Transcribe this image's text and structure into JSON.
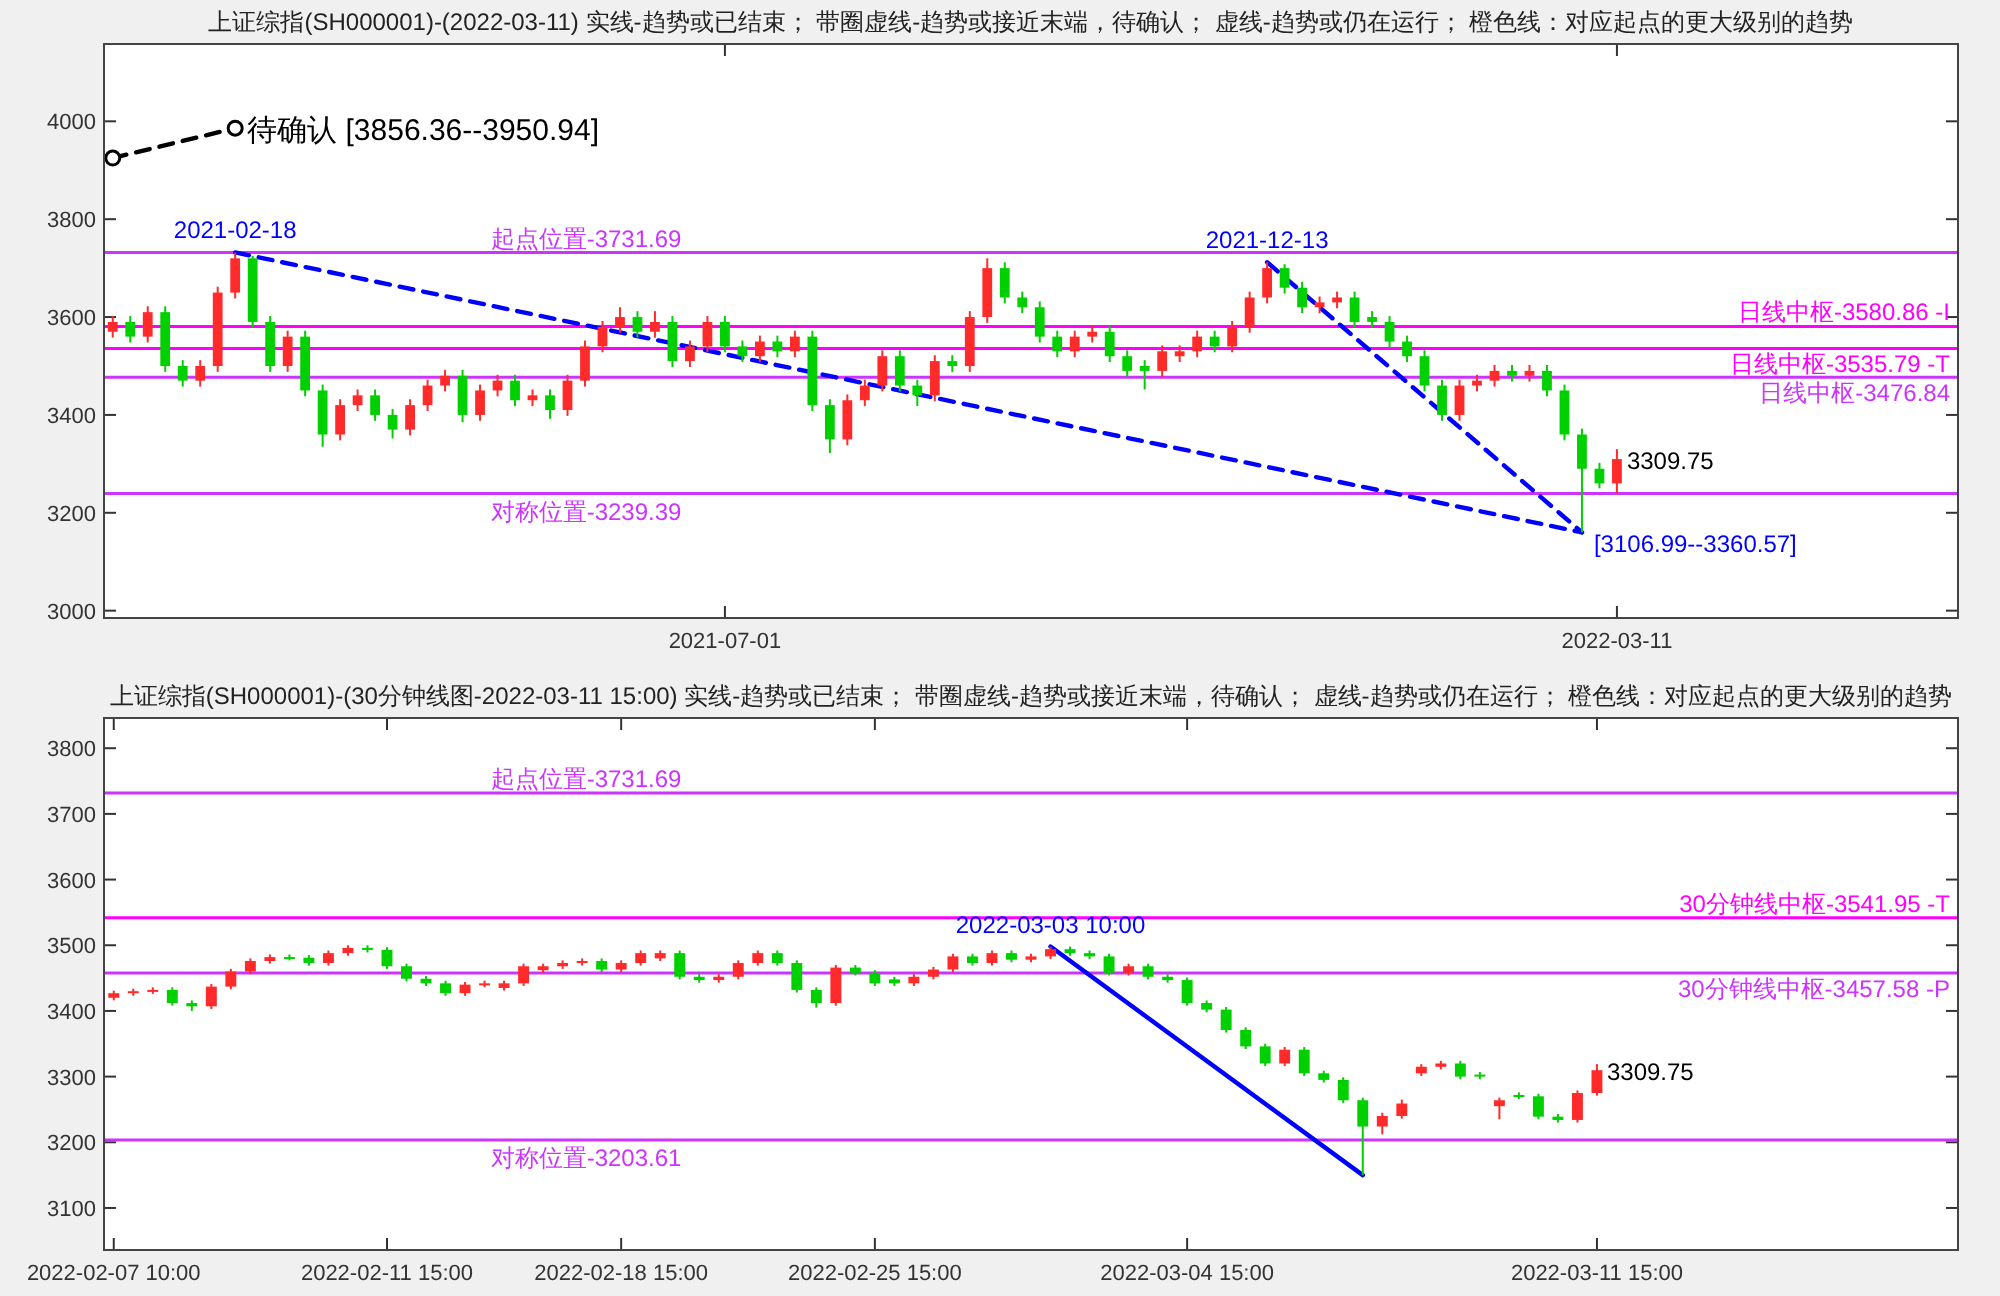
{
  "chart_data": [
    {
      "type": "candlestick",
      "title": "上证综指(SH000001)-(2022-03-11) 实线-趋势或已结束； 带圈虚线-趋势或接近末端，待确认； 虚线-趋势或仍在运行； 橙色线：对应起点的更大级别的趋势",
      "ylim": [
        2985,
        4158
      ],
      "yticks": [
        3000,
        3200,
        3400,
        3600,
        3800,
        4000
      ],
      "categories": [
        null,
        null,
        null,
        null,
        null,
        null,
        null,
        null,
        null,
        null,
        null,
        null,
        null,
        null,
        null,
        null,
        null,
        null,
        null,
        null,
        null,
        null,
        null,
        null,
        null,
        null,
        null,
        null,
        null,
        null,
        null,
        null,
        null,
        null,
        null,
        "2021-07-01",
        null,
        null,
        null,
        null,
        null,
        null,
        null,
        null,
        null,
        null,
        null,
        null,
        null,
        null,
        null,
        null,
        null,
        null,
        null,
        null,
        null,
        null,
        null,
        null,
        null,
        null,
        null,
        null,
        null,
        null,
        null,
        null,
        null,
        null,
        null,
        null,
        null,
        null,
        null,
        null,
        null,
        null,
        null,
        null,
        null,
        null,
        null,
        null,
        null,
        null,
        "2022-03-11",
        null,
        null,
        null,
        null,
        null,
        null,
        null,
        null,
        null,
        null,
        null,
        null,
        null,
        null,
        null,
        null,
        null,
        null,
        null
      ],
      "ohlc": [
        [
          3570,
          3602,
          3558,
          3590
        ],
        [
          3590,
          3602,
          3548,
          3560
        ],
        [
          3560,
          3622,
          3548,
          3610
        ],
        [
          3610,
          3622,
          3488,
          3500
        ],
        [
          3500,
          3512,
          3458,
          3470
        ],
        [
          3470,
          3512,
          3458,
          3500
        ],
        [
          3500,
          3662,
          3488,
          3650
        ],
        [
          3650,
          3732,
          3638,
          3720
        ],
        [
          3720,
          3725,
          3578,
          3590
        ],
        [
          3590,
          3602,
          3488,
          3500
        ],
        [
          3500,
          3572,
          3488,
          3560
        ],
        [
          3560,
          3572,
          3438,
          3450
        ],
        [
          3450,
          3462,
          3335,
          3360
        ],
        [
          3360,
          3432,
          3348,
          3420
        ],
        [
          3420,
          3452,
          3408,
          3440
        ],
        [
          3440,
          3452,
          3388,
          3400
        ],
        [
          3400,
          3412,
          3352,
          3370
        ],
        [
          3370,
          3432,
          3358,
          3420
        ],
        [
          3420,
          3472,
          3408,
          3460
        ],
        [
          3460,
          3492,
          3448,
          3480
        ],
        [
          3480,
          3492,
          3385,
          3400
        ],
        [
          3400,
          3462,
          3388,
          3450
        ],
        [
          3450,
          3482,
          3438,
          3470
        ],
        [
          3470,
          3482,
          3418,
          3430
        ],
        [
          3430,
          3452,
          3418,
          3440
        ],
        [
          3440,
          3452,
          3392,
          3410
        ],
        [
          3410,
          3482,
          3398,
          3470
        ],
        [
          3470,
          3552,
          3458,
          3540
        ],
        [
          3540,
          3592,
          3528,
          3580
        ],
        [
          3580,
          3620,
          3568,
          3600
        ],
        [
          3600,
          3612,
          3558,
          3570
        ],
        [
          3570,
          3612,
          3558,
          3590
        ],
        [
          3590,
          3602,
          3498,
          3510
        ],
        [
          3510,
          3552,
          3498,
          3540
        ],
        [
          3540,
          3602,
          3528,
          3590
        ],
        [
          3590,
          3602,
          3528,
          3540
        ],
        [
          3540,
          3552,
          3508,
          3520
        ],
        [
          3520,
          3562,
          3508,
          3550
        ],
        [
          3550,
          3562,
          3518,
          3530
        ],
        [
          3530,
          3572,
          3518,
          3560
        ],
        [
          3560,
          3572,
          3408,
          3420
        ],
        [
          3420,
          3432,
          3322,
          3350
        ],
        [
          3350,
          3442,
          3338,
          3430
        ],
        [
          3430,
          3472,
          3418,
          3460
        ],
        [
          3460,
          3532,
          3448,
          3520
        ],
        [
          3520,
          3532,
          3448,
          3460
        ],
        [
          3460,
          3472,
          3418,
          3440
        ],
        [
          3440,
          3522,
          3428,
          3510
        ],
        [
          3510,
          3522,
          3488,
          3500
        ],
        [
          3500,
          3612,
          3488,
          3600
        ],
        [
          3600,
          3720,
          3588,
          3700
        ],
        [
          3700,
          3712,
          3628,
          3640
        ],
        [
          3640,
          3652,
          3608,
          3620
        ],
        [
          3620,
          3632,
          3548,
          3560
        ],
        [
          3560,
          3572,
          3518,
          3530
        ],
        [
          3530,
          3572,
          3518,
          3560
        ],
        [
          3560,
          3582,
          3548,
          3570
        ],
        [
          3570,
          3582,
          3508,
          3520
        ],
        [
          3520,
          3532,
          3478,
          3490
        ],
        [
          3500,
          3512,
          3452,
          3490
        ],
        [
          3490,
          3542,
          3478,
          3530
        ],
        [
          3520,
          3542,
          3508,
          3530
        ],
        [
          3530,
          3572,
          3518,
          3560
        ],
        [
          3560,
          3572,
          3528,
          3540
        ],
        [
          3540,
          3592,
          3528,
          3580
        ],
        [
          3580,
          3652,
          3568,
          3640
        ],
        [
          3640,
          3712,
          3628,
          3700
        ],
        [
          3700,
          3708,
          3648,
          3660
        ],
        [
          3660,
          3672,
          3608,
          3620
        ],
        [
          3620,
          3642,
          3608,
          3630
        ],
        [
          3630,
          3652,
          3618,
          3640
        ],
        [
          3640,
          3652,
          3578,
          3590
        ],
        [
          3600,
          3612,
          3578,
          3590
        ],
        [
          3590,
          3602,
          3538,
          3550
        ],
        [
          3550,
          3562,
          3508,
          3520
        ],
        [
          3520,
          3532,
          3448,
          3460
        ],
        [
          3460,
          3472,
          3388,
          3400
        ],
        [
          3400,
          3472,
          3388,
          3460
        ],
        [
          3460,
          3482,
          3448,
          3470
        ],
        [
          3470,
          3502,
          3458,
          3490
        ],
        [
          3490,
          3502,
          3468,
          3480
        ],
        [
          3480,
          3502,
          3468,
          3490
        ],
        [
          3490,
          3502,
          3438,
          3450
        ],
        [
          3450,
          3462,
          3348,
          3360
        ],
        [
          3360,
          3372,
          3160,
          3290
        ],
        [
          3290,
          3302,
          3250,
          3260
        ],
        [
          3260,
          3330,
          3240,
          3309.75
        ],
        null,
        null,
        null,
        null,
        null,
        null,
        null,
        null,
        null,
        null,
        null,
        null,
        null,
        null,
        null,
        null,
        null,
        null,
        null
      ],
      "series": [
        {
          "type": "line",
          "color": "#000000",
          "line_style": "dashed",
          "marker": "circle",
          "values": [
            3925,
            null,
            null,
            null,
            null,
            null,
            null,
            3986,
            null,
            null,
            null,
            null,
            null,
            null,
            null,
            null,
            null,
            null,
            null,
            null,
            null,
            null,
            null,
            null,
            null,
            null,
            null,
            null,
            null,
            null,
            null,
            null,
            null,
            null,
            null,
            null,
            null,
            null,
            null,
            null,
            null,
            null,
            null,
            null,
            null,
            null,
            null,
            null,
            null,
            null,
            null,
            null,
            null,
            null,
            null,
            null,
            null,
            null,
            null,
            null,
            null,
            null,
            null,
            null,
            null,
            null,
            null,
            null,
            null,
            null,
            null,
            null,
            null,
            null,
            null,
            null,
            null,
            null,
            null,
            null,
            null,
            null,
            null,
            null,
            null,
            null,
            null,
            null,
            null,
            null,
            null,
            null,
            null,
            null,
            null,
            null,
            null,
            null,
            null,
            null,
            null,
            null,
            null,
            null,
            null,
            null
          ]
        },
        {
          "type": "line",
          "color": "#0000ff",
          "line_style": "dashed",
          "values": [
            null,
            null,
            null,
            null,
            null,
            null,
            null,
            3732,
            null,
            null,
            null,
            null,
            null,
            null,
            null,
            null,
            null,
            null,
            null,
            null,
            null,
            null,
            null,
            null,
            null,
            null,
            null,
            null,
            null,
            null,
            null,
            null,
            null,
            null,
            null,
            null,
            null,
            null,
            null,
            null,
            null,
            null,
            null,
            null,
            null,
            null,
            null,
            null,
            null,
            null,
            null,
            null,
            null,
            null,
            null,
            null,
            null,
            null,
            null,
            null,
            null,
            null,
            null,
            null,
            null,
            null,
            null,
            null,
            null,
            null,
            null,
            null,
            null,
            null,
            null,
            null,
            null,
            null,
            null,
            null,
            null,
            null,
            null,
            null,
            3160,
            null,
            null,
            null,
            null,
            null,
            null,
            null,
            null,
            null,
            null,
            null,
            null,
            null,
            null,
            null,
            null,
            null,
            null,
            null,
            null,
            null
          ]
        },
        {
          "type": "line",
          "color": "#0000ff",
          "line_style": "dashed",
          "values": [
            null,
            null,
            null,
            null,
            null,
            null,
            null,
            null,
            null,
            null,
            null,
            null,
            null,
            null,
            null,
            null,
            null,
            null,
            null,
            null,
            null,
            null,
            null,
            null,
            null,
            null,
            null,
            null,
            null,
            null,
            null,
            null,
            null,
            null,
            null,
            null,
            null,
            null,
            null,
            null,
            null,
            null,
            null,
            null,
            null,
            null,
            null,
            null,
            null,
            null,
            null,
            null,
            null,
            null,
            null,
            null,
            null,
            null,
            null,
            null,
            null,
            null,
            null,
            null,
            null,
            null,
            3712,
            null,
            null,
            null,
            null,
            null,
            null,
            null,
            null,
            null,
            null,
            null,
            null,
            null,
            null,
            null,
            null,
            null,
            3160,
            null,
            null,
            null,
            null,
            null,
            null,
            null,
            null,
            null,
            null,
            null,
            null,
            null,
            null,
            null,
            null,
            null,
            null,
            null,
            null,
            null
          ]
        }
      ],
      "ref_lines": [
        {
          "axis": "y",
          "value": 3731.69,
          "label": "起点位置-3731.69",
          "color": "#cc33ff"
        },
        {
          "axis": "y",
          "value": 3580.86,
          "label": "日线中枢-3580.86 -I",
          "color": "#ff00ff"
        },
        {
          "axis": "y",
          "value": 3535.79,
          "label": "日线中枢-3535.79 -T",
          "color": "#ff00ff"
        },
        {
          "axis": "y",
          "value": 3476.84,
          "label": "日线中枢-3476.84",
          "color": "#cc33ff"
        },
        {
          "axis": "y",
          "value": 3239.39,
          "label": "对称位置-3239.39",
          "color": "#cc33ff"
        }
      ],
      "annotations": [
        {
          "text": "2021-02-18",
          "y": 3732
        },
        {
          "text": "2021-12-13",
          "y": 3712
        },
        "待确认 [3856.36--3950.94]",
        "[3106.99--3360.57]",
        {
          "text": "3309.75",
          "x": "2022-03-11",
          "y": 3309.75
        }
      ]
    },
    {
      "type": "candlestick",
      "title": "上证综指(SH000001)-(30分钟线图-2022-03-11 15:00) 实线-趋势或已结束； 带圈虚线-趋势或接近末端，待确认； 虚线-趋势或仍在运行； 橙色线：对应起点的更大级别的趋势",
      "ylim": [
        3036,
        3846
      ],
      "yticks": [
        3100,
        3200,
        3300,
        3400,
        3500,
        3600,
        3700,
        3800
      ],
      "categories": [
        "2022-02-07 10:00",
        null,
        null,
        null,
        null,
        null,
        null,
        null,
        null,
        null,
        null,
        null,
        null,
        null,
        "2022-02-11 15:00",
        null,
        null,
        null,
        null,
        null,
        null,
        null,
        null,
        null,
        null,
        null,
        "2022-02-18 15:00",
        null,
        null,
        null,
        null,
        null,
        null,
        null,
        null,
        null,
        null,
        null,
        null,
        "2022-02-25 15:00",
        null,
        null,
        null,
        null,
        null,
        null,
        null,
        null,
        null,
        null,
        null,
        null,
        null,
        null,
        null,
        "2022-03-04 15:00",
        null,
        null,
        null,
        null,
        null,
        null,
        null,
        null,
        null,
        null,
        null,
        null,
        null,
        null,
        null,
        null,
        null,
        null,
        null,
        null,
        "2022-03-11 15:00",
        null,
        null,
        null,
        null,
        null,
        null,
        null,
        null,
        null,
        null,
        null,
        null,
        null,
        null,
        null,
        null,
        null,
        null
      ],
      "ohlc": [
        [
          3420,
          3431,
          3416,
          3427
        ],
        [
          3427,
          3434,
          3423,
          3430
        ],
        [
          3430,
          3436,
          3426,
          3432
        ],
        [
          3432,
          3436,
          3408,
          3412
        ],
        [
          3412,
          3416,
          3400,
          3407
        ],
        [
          3407,
          3441,
          3403,
          3437
        ],
        [
          3437,
          3464,
          3433,
          3460
        ],
        [
          3460,
          3480,
          3456,
          3476
        ],
        [
          3476,
          3486,
          3472,
          3482
        ],
        [
          3482,
          3486,
          3477,
          3481
        ],
        [
          3481,
          3485,
          3469,
          3473
        ],
        [
          3473,
          3492,
          3469,
          3488
        ],
        [
          3488,
          3500,
          3484,
          3496
        ],
        [
          3496,
          3500,
          3489,
          3493
        ],
        [
          3493,
          3497,
          3464,
          3468
        ],
        [
          3468,
          3472,
          3445,
          3449
        ],
        [
          3449,
          3453,
          3438,
          3442
        ],
        [
          3442,
          3446,
          3423,
          3427
        ],
        [
          3427,
          3444,
          3423,
          3440
        ],
        [
          3440,
          3446,
          3436,
          3442
        ],
        [
          3435,
          3446,
          3431,
          3442
        ],
        [
          3442,
          3472,
          3438,
          3468
        ],
        [
          3462,
          3472,
          3458,
          3468
        ],
        [
          3468,
          3477,
          3464,
          3473
        ],
        [
          3473,
          3480,
          3469,
          3476
        ],
        [
          3476,
          3480,
          3459,
          3463
        ],
        [
          3463,
          3477,
          3459,
          3473
        ],
        [
          3473,
          3492,
          3469,
          3488
        ],
        [
          3480,
          3492,
          3476,
          3488
        ],
        [
          3488,
          3492,
          3448,
          3452
        ],
        [
          3452,
          3456,
          3443,
          3447
        ],
        [
          3447,
          3456,
          3443,
          3452
        ],
        [
          3452,
          3477,
          3448,
          3473
        ],
        [
          3473,
          3492,
          3469,
          3488
        ],
        [
          3488,
          3492,
          3469,
          3473
        ],
        [
          3473,
          3477,
          3428,
          3432
        ],
        [
          3432,
          3436,
          3405,
          3412
        ],
        [
          3412,
          3470,
          3408,
          3466
        ],
        [
          3466,
          3470,
          3454,
          3458
        ],
        [
          3458,
          3462,
          3438,
          3442
        ],
        [
          3448,
          3452,
          3438,
          3442
        ],
        [
          3442,
          3456,
          3438,
          3452
        ],
        [
          3452,
          3467,
          3448,
          3463
        ],
        [
          3463,
          3487,
          3459,
          3483
        ],
        [
          3483,
          3487,
          3469,
          3473
        ],
        [
          3473,
          3492,
          3469,
          3488
        ],
        [
          3488,
          3492,
          3474,
          3478
        ],
        [
          3478,
          3487,
          3474,
          3483
        ],
        [
          3483,
          3498,
          3479,
          3494
        ],
        [
          3494,
          3498,
          3484,
          3488
        ],
        [
          3488,
          3492,
          3479,
          3483
        ],
        [
          3483,
          3487,
          3454,
          3458
        ],
        [
          3458,
          3472,
          3454,
          3468
        ],
        [
          3468,
          3472,
          3448,
          3452
        ],
        [
          3452,
          3456,
          3443,
          3447
        ],
        [
          3447,
          3451,
          3408,
          3412
        ],
        [
          3412,
          3416,
          3398,
          3402
        ],
        [
          3402,
          3406,
          3367,
          3371
        ],
        [
          3371,
          3375,
          3342,
          3346
        ],
        [
          3346,
          3350,
          3316,
          3320
        ],
        [
          3320,
          3345,
          3316,
          3341
        ],
        [
          3341,
          3345,
          3301,
          3305
        ],
        [
          3305,
          3309,
          3291,
          3295
        ],
        [
          3295,
          3299,
          3260,
          3264
        ],
        [
          3264,
          3268,
          3150,
          3224
        ],
        [
          3224,
          3245,
          3212,
          3240
        ],
        [
          3240,
          3265,
          3236,
          3259
        ],
        [
          3305,
          3319,
          3301,
          3315
        ],
        [
          3315,
          3324,
          3311,
          3320
        ],
        [
          3320,
          3324,
          3296,
          3300
        ],
        [
          3303,
          3307,
          3296,
          3300
        ],
        [
          3255,
          3268,
          3235,
          3264
        ],
        [
          3272,
          3276,
          3266,
          3270
        ],
        [
          3270,
          3274,
          3235,
          3239
        ],
        [
          3239,
          3243,
          3230,
          3234
        ],
        [
          3234,
          3279,
          3230,
          3275
        ],
        [
          3275,
          3319,
          3271,
          3309.75
        ],
        null,
        null,
        null,
        null,
        null,
        null,
        null,
        null,
        null,
        null,
        null,
        null,
        null,
        null,
        null,
        null,
        null,
        null
      ],
      "series": [
        {
          "type": "line",
          "color": "#0000ff",
          "line_style": "solid",
          "values": [
            null,
            null,
            null,
            null,
            null,
            null,
            null,
            null,
            null,
            null,
            null,
            null,
            null,
            null,
            null,
            null,
            null,
            null,
            null,
            null,
            null,
            null,
            null,
            null,
            null,
            null,
            null,
            null,
            null,
            null,
            null,
            null,
            null,
            null,
            null,
            null,
            null,
            null,
            null,
            null,
            null,
            null,
            null,
            null,
            null,
            null,
            null,
            null,
            3498,
            null,
            null,
            null,
            null,
            null,
            null,
            null,
            null,
            null,
            null,
            null,
            null,
            null,
            null,
            null,
            3150,
            null,
            null,
            null,
            null,
            null,
            null,
            null,
            null,
            null,
            null,
            null,
            null,
            null,
            null,
            null,
            null,
            null,
            null,
            null,
            null,
            null,
            null,
            null,
            null,
            null,
            null,
            null,
            null,
            null,
            null
          ]
        }
      ],
      "ref_lines": [
        {
          "axis": "y",
          "value": 3731.69,
          "label": "起点位置-3731.69",
          "color": "#cc33ff"
        },
        {
          "axis": "y",
          "value": 3541.95,
          "label": "30分钟线中枢-3541.95 -T",
          "color": "#ff00ff"
        },
        {
          "axis": "y",
          "value": 3457.58,
          "label": "30分钟线中枢-3457.58 -P",
          "color": "#cc33ff"
        },
        {
          "axis": "y",
          "value": 3203.61,
          "label": "对称位置-3203.61",
          "color": "#cc33ff"
        }
      ],
      "annotations": [
        {
          "text": "2022-03-03 10:00",
          "y": 3498
        },
        {
          "text": "3309.75",
          "x": "2022-03-11 15:00",
          "y": 3309.75
        }
      ]
    }
  ]
}
